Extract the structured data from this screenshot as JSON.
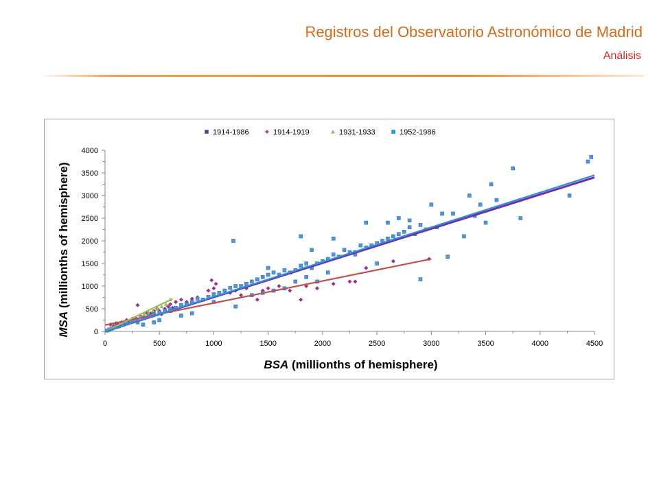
{
  "header": {
    "title": "Registros del Observatorio Astronómico de Madrid",
    "subtitle": "Análisis"
  },
  "chart_data": {
    "type": "scatter",
    "xlabel_italic": "BSA",
    "xlabel_rest": " (millionths of hemisphere)",
    "ylabel_italic": "MSA",
    "ylabel_rest": " (millionths of hemisphere)",
    "xlim": [
      0,
      4500
    ],
    "ylim": [
      0,
      4000
    ],
    "x_ticks": [
      0,
      500,
      1000,
      1500,
      2000,
      2500,
      3000,
      3500,
      4000,
      4500
    ],
    "y_ticks": [
      0,
      500,
      1000,
      1500,
      2000,
      2500,
      3000,
      3500,
      4000
    ],
    "legend_position": "top",
    "grid": false,
    "series": [
      {
        "name": "1914-1986",
        "color": "#7030a0",
        "marker": "square",
        "trendline": [
          [
            0,
            0
          ],
          [
            4500,
            3400
          ]
        ]
      },
      {
        "name": "1914-1919",
        "color": "#c0504d",
        "marker": "diamond",
        "points": [
          [
            50,
            150
          ],
          [
            80,
            120
          ],
          [
            100,
            180
          ],
          [
            120,
            160
          ],
          [
            150,
            200
          ],
          [
            180,
            150
          ],
          [
            200,
            250
          ],
          [
            220,
            220
          ],
          [
            250,
            280
          ],
          [
            280,
            300
          ],
          [
            300,
            580
          ],
          [
            320,
            350
          ],
          [
            350,
            300
          ],
          [
            380,
            420
          ],
          [
            400,
            350
          ],
          [
            420,
            400
          ],
          [
            450,
            450
          ],
          [
            480,
            500
          ],
          [
            500,
            450
          ],
          [
            520,
            380
          ],
          [
            550,
            500
          ],
          [
            580,
            550
          ],
          [
            600,
            600
          ],
          [
            620,
            520
          ],
          [
            650,
            650
          ],
          [
            700,
            700
          ],
          [
            750,
            650
          ],
          [
            800,
            720
          ],
          [
            850,
            750
          ],
          [
            900,
            700
          ],
          [
            950,
            900
          ],
          [
            980,
            1130
          ],
          [
            1000,
            950
          ],
          [
            1020,
            1050
          ],
          [
            1100,
            900
          ],
          [
            1150,
            850
          ],
          [
            1200,
            900
          ],
          [
            1250,
            800
          ],
          [
            1300,
            950
          ],
          [
            1400,
            700
          ],
          [
            1450,
            900
          ],
          [
            1500,
            950
          ],
          [
            1600,
            1000
          ],
          [
            1700,
            900
          ],
          [
            1800,
            700
          ],
          [
            1850,
            1000
          ],
          [
            1950,
            950
          ],
          [
            2100,
            1050
          ],
          [
            2250,
            1100
          ],
          [
            2300,
            1100
          ],
          [
            2400,
            1400
          ],
          [
            2650,
            1550
          ],
          [
            2980,
            1600
          ]
        ],
        "trendline": [
          [
            0,
            140
          ],
          [
            3000,
            1600
          ]
        ]
      },
      {
        "name": "1931-1933",
        "color": "#9bbb59",
        "marker": "triangle",
        "points": [
          [
            40,
            40
          ],
          [
            80,
            80
          ],
          [
            120,
            100
          ],
          [
            160,
            150
          ],
          [
            200,
            200
          ],
          [
            240,
            240
          ],
          [
            280,
            260
          ],
          [
            320,
            320
          ],
          [
            360,
            380
          ],
          [
            400,
            420
          ],
          [
            440,
            450
          ],
          [
            480,
            500
          ],
          [
            520,
            550
          ],
          [
            560,
            600
          ],
          [
            600,
            700
          ]
        ],
        "trendline": [
          [
            0,
            0
          ],
          [
            620,
            720
          ]
        ]
      },
      {
        "name": "1952-1986",
        "color": "#00b0f0",
        "marker": "circle",
        "points": [
          [
            20,
            20
          ],
          [
            40,
            40
          ],
          [
            60,
            60
          ],
          [
            80,
            80
          ],
          [
            100,
            100
          ],
          [
            130,
            120
          ],
          [
            160,
            150
          ],
          [
            200,
            180
          ],
          [
            250,
            220
          ],
          [
            300,
            250
          ],
          [
            350,
            300
          ],
          [
            400,
            350
          ],
          [
            450,
            380
          ],
          [
            500,
            420
          ],
          [
            550,
            460
          ],
          [
            600,
            500
          ],
          [
            650,
            520
          ],
          [
            700,
            580
          ],
          [
            750,
            600
          ],
          [
            800,
            650
          ],
          [
            850,
            720
          ],
          [
            900,
            700
          ],
          [
            950,
            760
          ],
          [
            1000,
            820
          ],
          [
            1050,
            850
          ],
          [
            1100,
            900
          ],
          [
            1150,
            960
          ],
          [
            1200,
            1000
          ],
          [
            1250,
            1000
          ],
          [
            1300,
            1050
          ],
          [
            1350,
            1100
          ],
          [
            1400,
            1150
          ],
          [
            1450,
            1200
          ],
          [
            1500,
            1250
          ],
          [
            1550,
            1300
          ],
          [
            1600,
            1250
          ],
          [
            1650,
            1350
          ],
          [
            1700,
            1300
          ],
          [
            1750,
            1350
          ],
          [
            1800,
            1450
          ],
          [
            1850,
            1500
          ],
          [
            1900,
            1400
          ],
          [
            1950,
            1500
          ],
          [
            2000,
            1550
          ],
          [
            2050,
            1600
          ],
          [
            2100,
            1700
          ],
          [
            2150,
            1650
          ],
          [
            2200,
            1800
          ],
          [
            2250,
            1750
          ],
          [
            2300,
            1750
          ],
          [
            2350,
            1900
          ],
          [
            2400,
            1850
          ],
          [
            2450,
            1900
          ],
          [
            2500,
            1950
          ],
          [
            2550,
            2000
          ],
          [
            2600,
            2050
          ],
          [
            2650,
            2100
          ],
          [
            2700,
            2150
          ],
          [
            2750,
            2200
          ],
          [
            2800,
            2300
          ],
          [
            2850,
            2150
          ],
          [
            2900,
            2350
          ],
          [
            2950,
            2250
          ],
          [
            3000,
            2800
          ],
          [
            3050,
            2300
          ],
          [
            3100,
            2600
          ],
          [
            3150,
            1650
          ],
          [
            3200,
            2600
          ],
          [
            3300,
            2100
          ],
          [
            3350,
            3000
          ],
          [
            3400,
            2550
          ],
          [
            3450,
            2800
          ],
          [
            3500,
            2400
          ],
          [
            3550,
            3250
          ],
          [
            3600,
            2900
          ],
          [
            3750,
            3600
          ],
          [
            3820,
            2500
          ],
          [
            4270,
            3000
          ],
          [
            4440,
            3750
          ],
          [
            4470,
            3850
          ],
          [
            1180,
            2000
          ],
          [
            1500,
            1400
          ],
          [
            1800,
            2100
          ],
          [
            1900,
            1800
          ],
          [
            2100,
            2050
          ],
          [
            2300,
            1700
          ],
          [
            2400,
            2400
          ],
          [
            2500,
            1500
          ],
          [
            2600,
            2400
          ],
          [
            2700,
            2500
          ],
          [
            2800,
            2450
          ],
          [
            2900,
            1150
          ],
          [
            1200,
            550
          ],
          [
            1000,
            650
          ],
          [
            800,
            400
          ],
          [
            700,
            350
          ],
          [
            600,
            450
          ],
          [
            500,
            250
          ],
          [
            450,
            200
          ],
          [
            350,
            150
          ],
          [
            300,
            200
          ],
          [
            1350,
            800
          ],
          [
            1450,
            850
          ],
          [
            1550,
            900
          ],
          [
            1650,
            950
          ],
          [
            1750,
            1100
          ],
          [
            1850,
            1200
          ],
          [
            1950,
            1100
          ],
          [
            2050,
            1300
          ]
        ],
        "trendline": [
          [
            0,
            0
          ],
          [
            4500,
            3450
          ]
        ]
      }
    ]
  }
}
